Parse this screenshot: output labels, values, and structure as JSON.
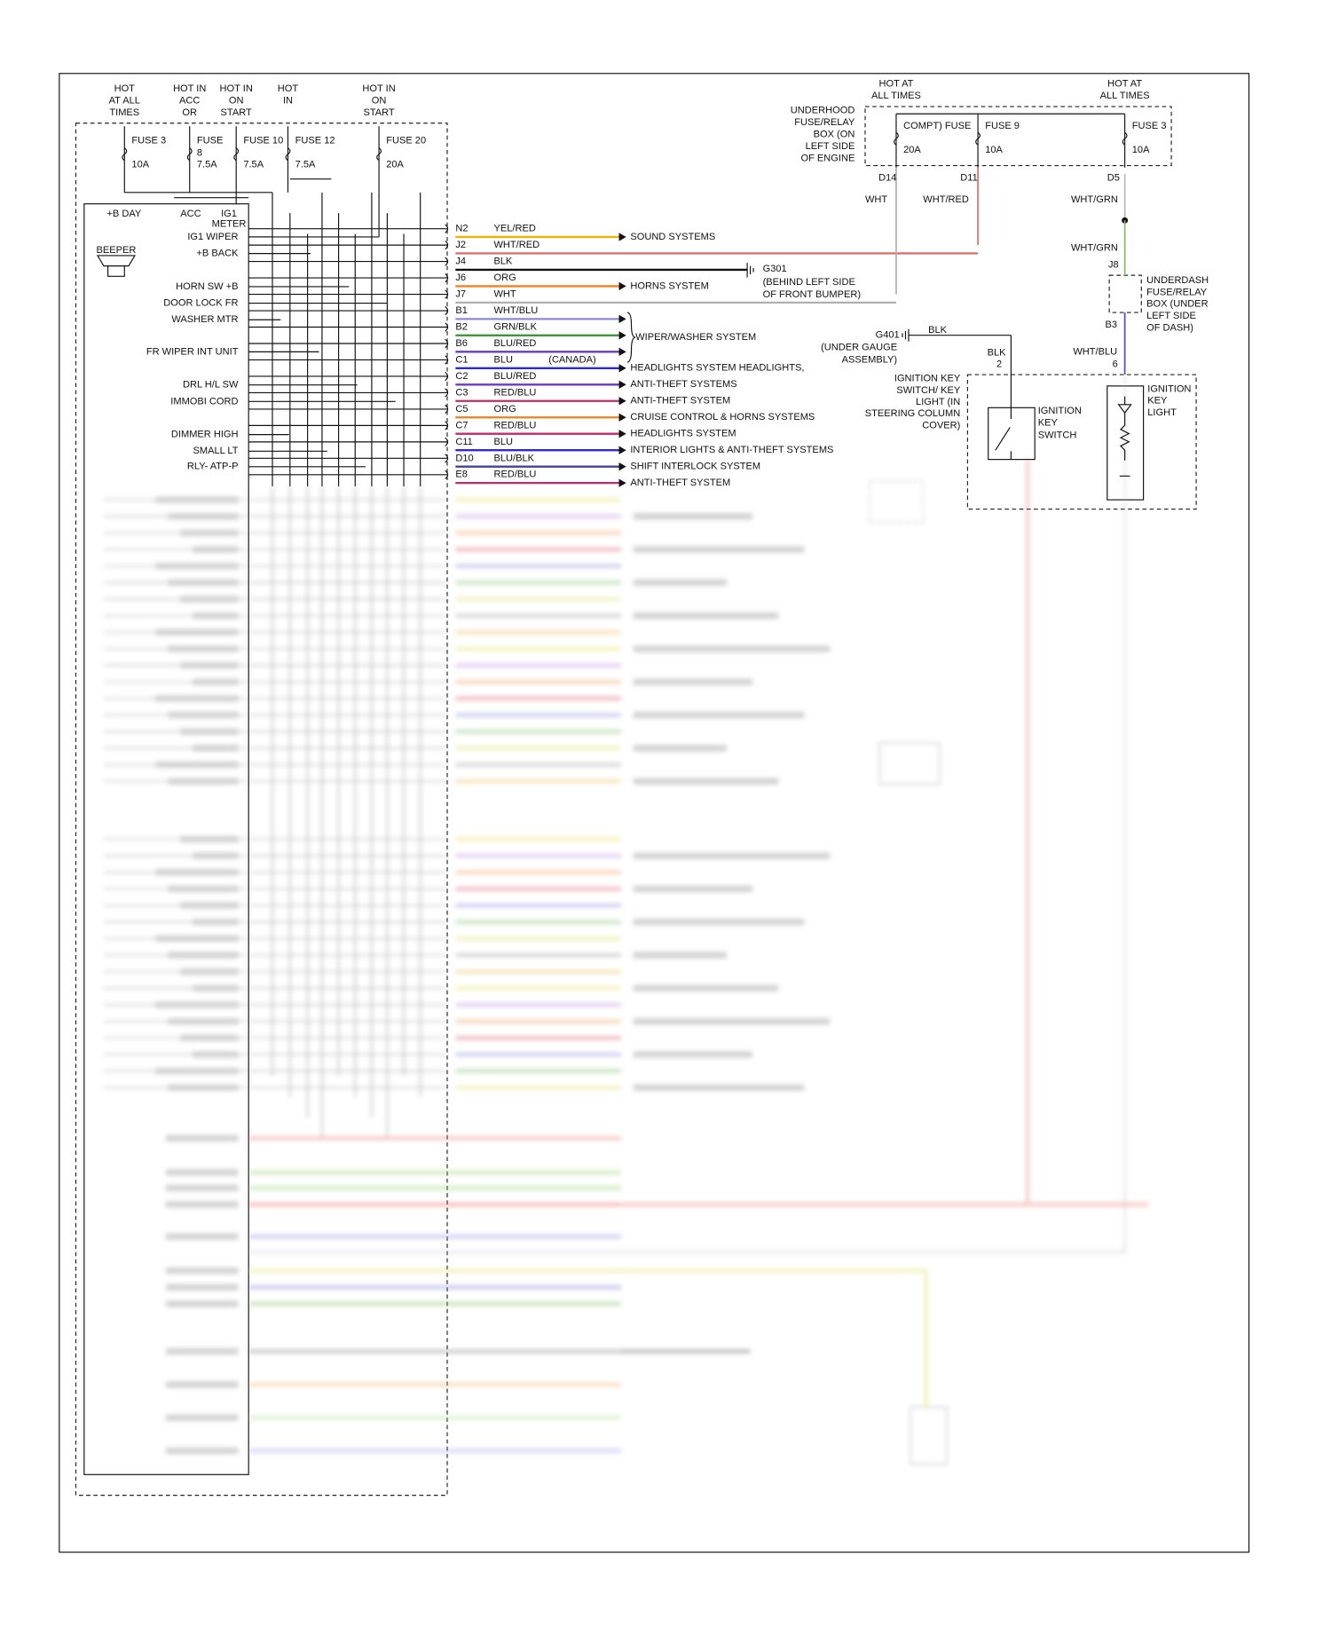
{
  "left_header": [
    {
      "lines": [
        "HOT",
        "AT ALL",
        "TIMES"
      ]
    },
    {
      "lines": [
        "HOT IN",
        "ACC",
        "OR"
      ]
    },
    {
      "lines": [
        "HOT IN",
        "ON",
        "START"
      ]
    },
    {
      "lines": [
        "HOT",
        "IN"
      ]
    },
    {
      "lines": [
        "HOT IN",
        "ON",
        "START"
      ]
    }
  ],
  "left_fuses": [
    {
      "name": [
        "FUSE 3"
      ],
      "rating": "10A"
    },
    {
      "name": [
        "FUSE",
        "8"
      ],
      "rating": "7.5A"
    },
    {
      "name": [
        "FUSE 10"
      ],
      "rating": "7.5A"
    },
    {
      "name": [
        "FUSE 12"
      ],
      "rating": "7.5A"
    },
    {
      "name": [
        "FUSE 20"
      ],
      "rating": "20A"
    }
  ],
  "module_top": {
    "b_day": "+B DAY",
    "acc": "ACC",
    "ig1_meter": [
      "IG1",
      "METER"
    ]
  },
  "beeper": "BEEPER",
  "module_pins": [
    "IG1 WIPER",
    "+B BACK",
    "HORN SW +B",
    "DOOR LOCK FR",
    "WASHER MTR",
    "FR WIPER INT UNIT",
    "DRL H/L SW",
    "IMMOBI CORD",
    "DIMMER HIGH",
    "SMALL LT",
    "RLY- ATP-P"
  ],
  "connector_rows": [
    {
      "pin": "N2",
      "wire": "YEL/RED",
      "color": "#e8b400",
      "destination": "SOUND SYSTEMS"
    },
    {
      "pin": "J2",
      "wire": "WHT/RED",
      "color": "#e07070"
    },
    {
      "pin": "J4",
      "wire": "BLK",
      "color": "#111111"
    },
    {
      "pin": "J6",
      "wire": "ORG",
      "color": "#f08020",
      "destination": "HORNS SYSTEM"
    },
    {
      "pin": "J7",
      "wire": "WHT",
      "color": "#b0b0b0"
    },
    {
      "pin": "B1",
      "wire": "WHT/BLU",
      "color": "#8a8ad8"
    },
    {
      "pin": "B2",
      "wire": "GRN/BLK",
      "color": "#3a9a3a"
    },
    {
      "pin": "B6",
      "wire": "BLU/RED",
      "color": "#6a3ac0"
    },
    {
      "pin": "C1",
      "wire": "BLU",
      "color": "#2a2ad0",
      "note": "(CANADA)",
      "destination": "HEADLIGHTS SYSTEM HEADLIGHTS,"
    },
    {
      "pin": "C2",
      "wire": "BLU/RED",
      "color": "#6a3ac0",
      "destination": "ANTI-THEFT SYSTEMS"
    },
    {
      "pin": "C3",
      "wire": "RED/BLU",
      "color": "#c02a6a",
      "destination": "ANTI-THEFT SYSTEM"
    },
    {
      "pin": "C5",
      "wire": "ORG",
      "color": "#f08020",
      "destination": "CRUISE CONTROL & HORNS SYSTEMS"
    },
    {
      "pin": "C7",
      "wire": "RED/BLU",
      "color": "#c02a6a",
      "destination": "HEADLIGHTS SYSTEM"
    },
    {
      "pin": "C11",
      "wire": "BLU",
      "color": "#2a2ad0",
      "destination": "INTERIOR LIGHTS & ANTI-THEFT SYSTEMS"
    },
    {
      "pin": "D10",
      "wire": "BLU/BLK",
      "color": "#4040a0",
      "destination": "SHIFT INTERLOCK SYSTEM"
    },
    {
      "pin": "E8",
      "wire": "RED/BLU",
      "color": "#c02a6a",
      "destination": "ANTI-THEFT SYSTEM"
    }
  ],
  "wiper_group": "WIPER/WASHER SYSTEM",
  "g301": {
    "name": "G301",
    "lines": [
      "(BEHIND LEFT SIDE",
      "OF FRONT BUMPER)"
    ]
  },
  "right_header": [
    {
      "lines": [
        "HOT AT",
        "ALL TIMES"
      ]
    },
    {
      "lines": [
        "HOT AT",
        "ALL TIMES"
      ]
    }
  ],
  "underhood_box": [
    "UNDERHOOD",
    "FUSE/RELAY",
    "BOX (ON",
    "LEFT SIDE",
    "OF ENGINE"
  ],
  "right_fuses": [
    {
      "name": "COMPT) FUSE",
      "rating": "20A",
      "pin": "D14",
      "wire": "WHT"
    },
    {
      "name": "FUSE 9",
      "rating": "10A",
      "pin": "D11",
      "wire": "WHT/RED"
    },
    {
      "name": "FUSE 3",
      "rating": "10A",
      "pin": "D5",
      "wire": "WHT/GRN"
    }
  ],
  "underdash": {
    "wire_in": "WHT/GRN",
    "pin_in": "J8",
    "lines": [
      "UNDERDASH",
      "FUSE/RELAY",
      "BOX (UNDER",
      "LEFT SIDE",
      "OF DASH)"
    ],
    "pin_out": "B3",
    "wire_out": "WHT/BLU",
    "terminal": "6"
  },
  "g401": {
    "name": "G401",
    "wire": "BLK",
    "lines": [
      "(UNDER GAUGE",
      "ASSEMBLY)"
    ]
  },
  "ignition": {
    "wire": "BLK",
    "terminal": "2",
    "assembly": [
      "IGNITION KEY",
      "SWITCH/ KEY",
      "LIGHT (IN",
      "STEERING COLUMN",
      "COVER)"
    ],
    "switch": [
      "IGNITION",
      "KEY",
      "SWITCH"
    ],
    "light": [
      "IGNITION",
      "KEY",
      "LIGHT"
    ]
  }
}
